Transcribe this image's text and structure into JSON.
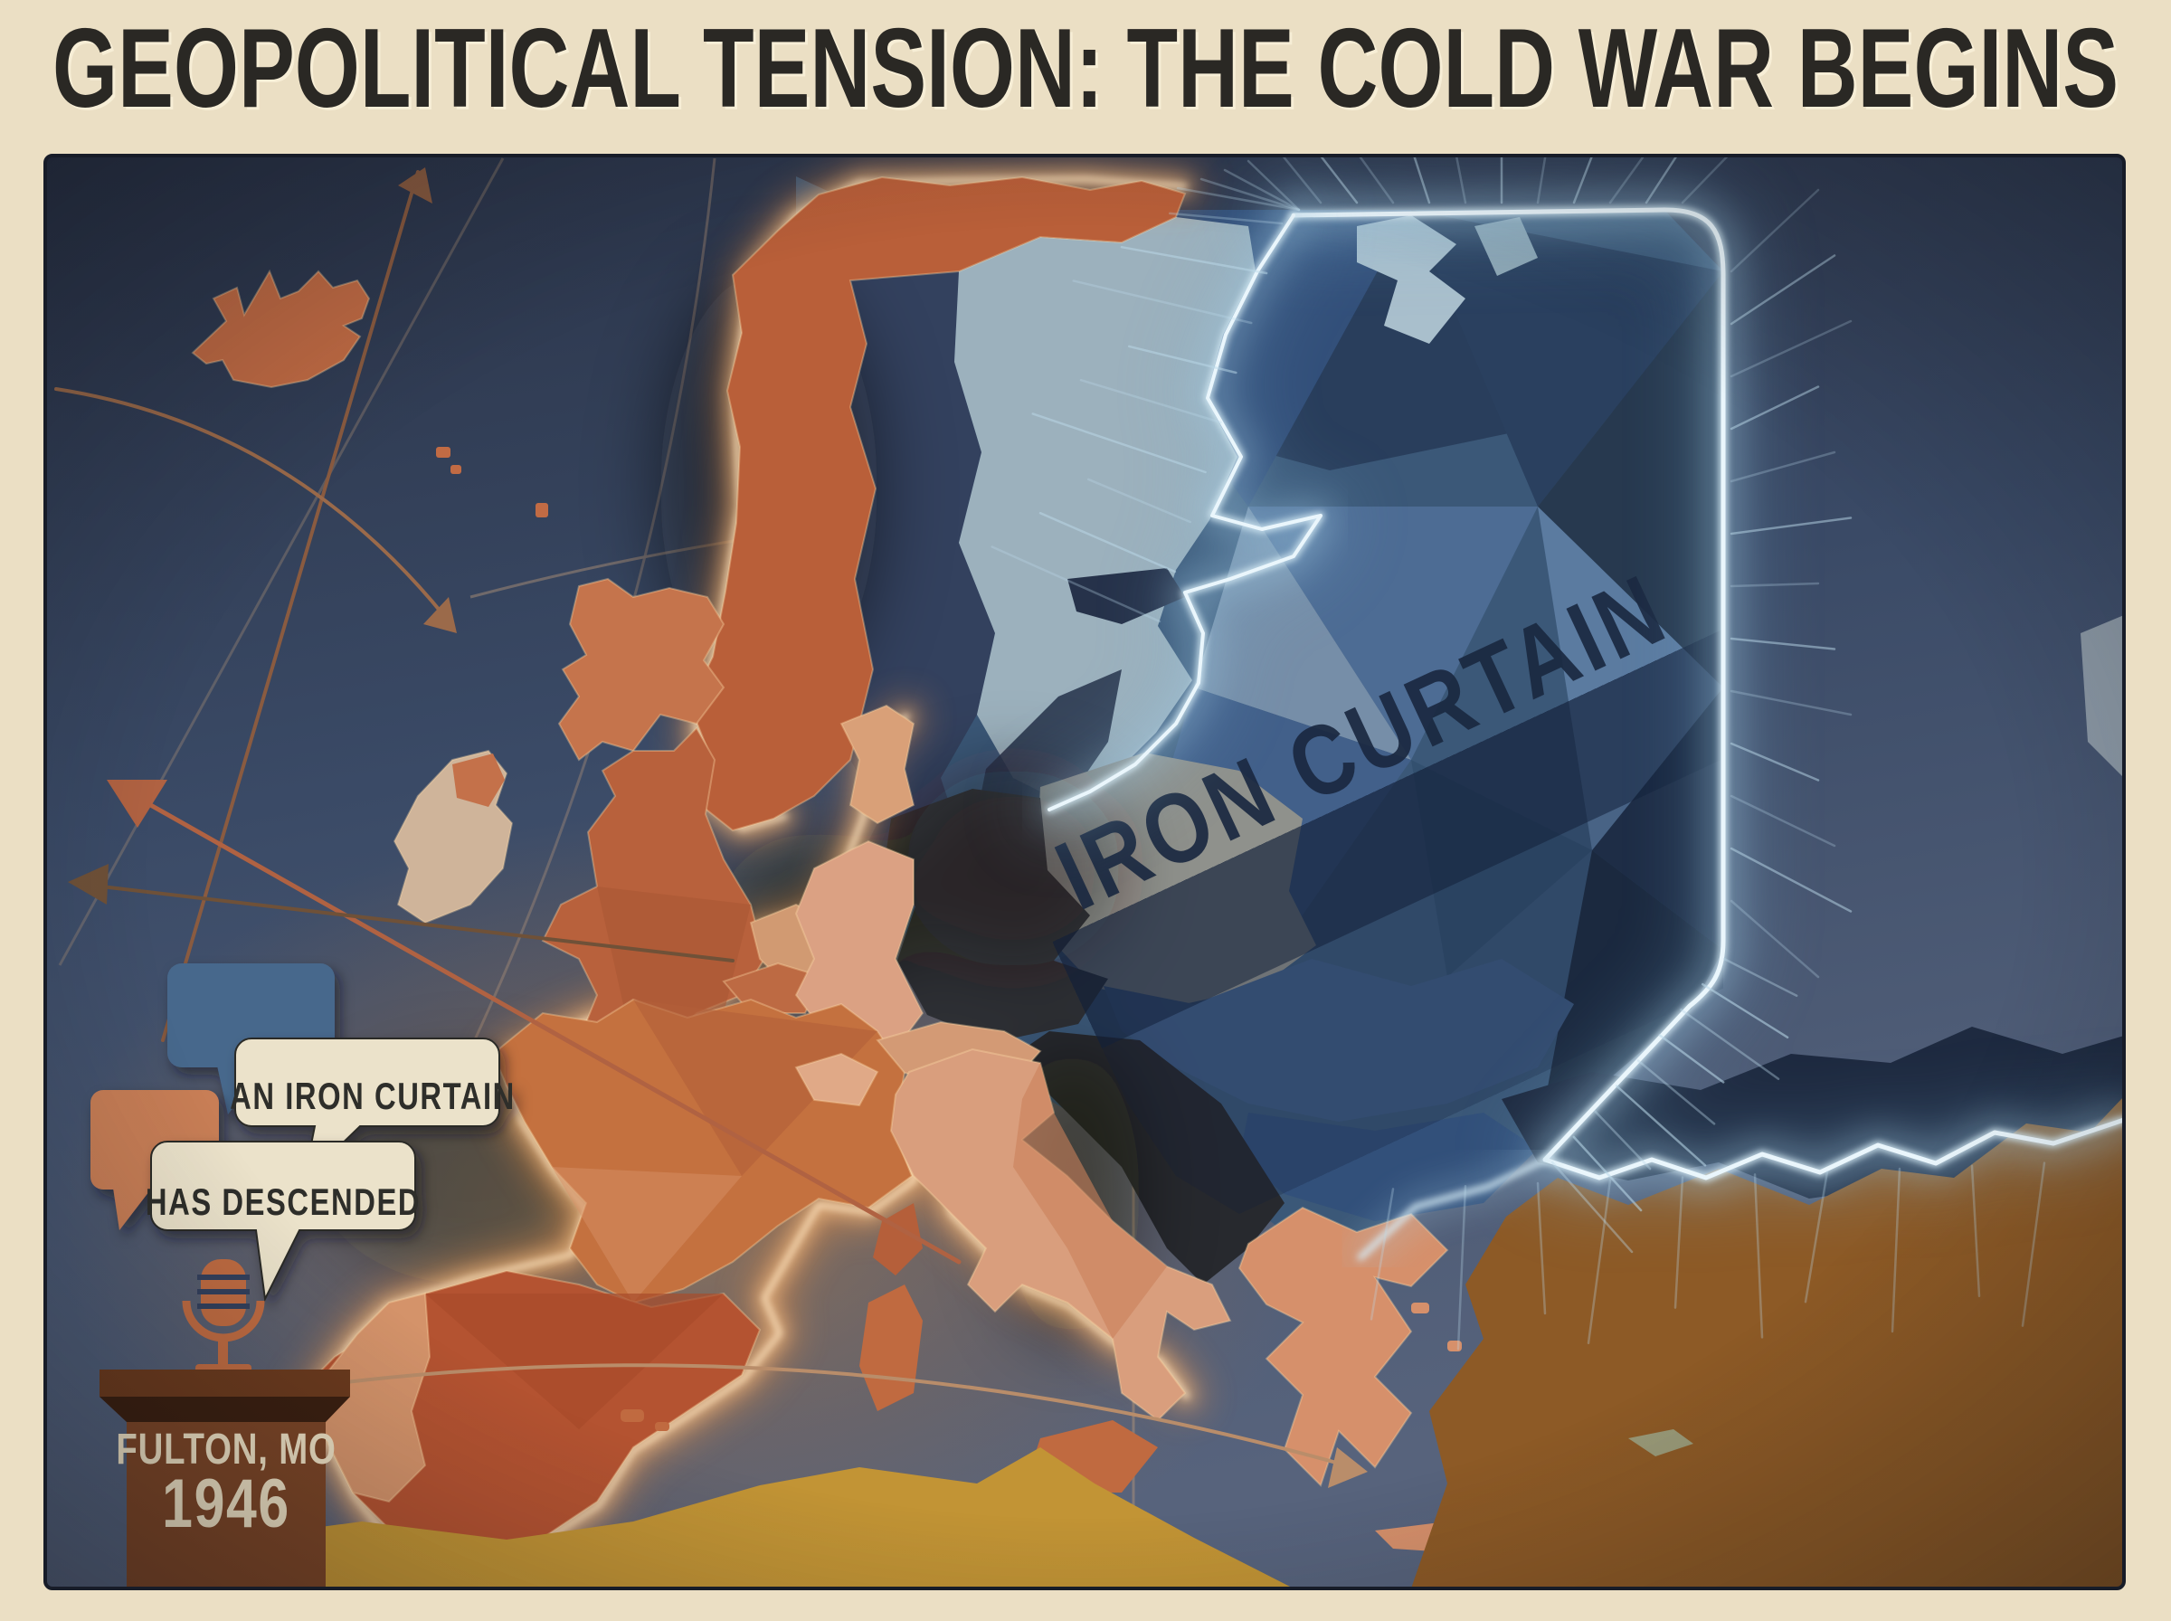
{
  "poster": {
    "title": "GEOPOLITICAL TENSION: THE COLD WAR BEGINS",
    "map": {
      "curtain_label": "IRON CURTAIN"
    },
    "speech": {
      "bubble1": "AN IRON CURTAIN",
      "bubble2": "HAS DESCENDED"
    },
    "podium": {
      "location": "FULTON, MO",
      "year": "1946"
    },
    "colors": {
      "paper": "#ebdfc4",
      "ink": "#2a2824",
      "sea_dark": "#2b3448",
      "sea_light": "#55627b",
      "west_orange": "#c06a44",
      "east_blue": "#3b5878",
      "curtain_glow": "#d9ecf6",
      "coast_glow": "#ffc98f",
      "bubble_cream": "#ebe2ca",
      "bubble_blue": "#46688c",
      "bubble_orange": "#c87e56",
      "podium_brown": "#7b4526",
      "turkey_brown": "#8d5a26",
      "africa_gold": "#c29435"
    }
  }
}
